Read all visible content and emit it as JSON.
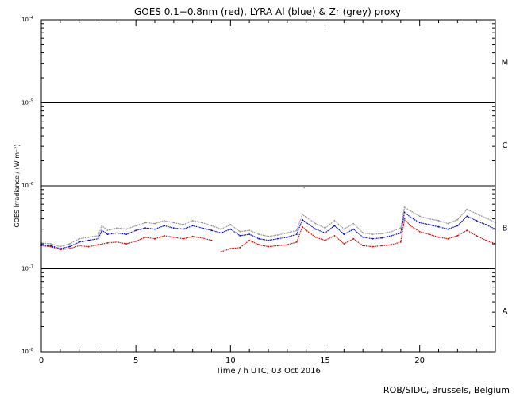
{
  "chart_data": {
    "type": "line",
    "title": "GOES 0.1−0.8nm (red), LYRA Al (blue) & Zr (grey) proxy",
    "xlabel": "Time / h UTC, 03 Oct 2016",
    "ylabel": "GOES Irradiance / (W m⁻²)",
    "xlim": [
      0,
      24
    ],
    "ylim_log10": [
      -8,
      -4
    ],
    "y_scale": "log",
    "x_ticks": [
      0,
      5,
      10,
      15,
      20
    ],
    "x_tick_labels": [
      "0",
      "5",
      "10",
      "15",
      "20"
    ],
    "y_ticks_log10": [
      -8,
      -7,
      -6,
      -5,
      -4
    ],
    "y_tick_labels": [
      {
        "base": "10",
        "exp": "-8"
      },
      {
        "base": "10",
        "exp": "-7"
      },
      {
        "base": "10",
        "exp": "-6"
      },
      {
        "base": "10",
        "exp": "-5"
      },
      {
        "base": "10",
        "exp": "-4"
      }
    ],
    "flare_class_lines_log10": [
      -7,
      -6,
      -5
    ],
    "flare_classes": [
      {
        "label": "A",
        "log10": -7.5
      },
      {
        "label": "B",
        "log10": -6.5
      },
      {
        "label": "C",
        "log10": -5.5
      },
      {
        "label": "M",
        "log10": -4.5
      }
    ],
    "series": [
      {
        "name": "GOES 0.1−0.8nm",
        "color": "#e00000",
        "x": [
          0,
          0.5,
          1,
          1.5,
          2,
          2.5,
          3,
          3.5,
          4,
          4.5,
          5,
          5.5,
          6,
          6.5,
          7,
          7.5,
          8,
          8.5,
          9
        ],
        "y": [
          1.9e-07,
          1.85e-07,
          1.7e-07,
          1.75e-07,
          1.9e-07,
          1.85e-07,
          1.95e-07,
          2.05e-07,
          2.1e-07,
          2e-07,
          2.15e-07,
          2.4e-07,
          2.3e-07,
          2.5e-07,
          2.4e-07,
          2.3e-07,
          2.45e-07,
          2.35e-07,
          2.2e-07
        ]
      },
      {
        "name": "GOES 0.1−0.8nm (cont.)",
        "color": "#e00000",
        "x": [
          9.5,
          10,
          10.5,
          11,
          11.5,
          12,
          12.5,
          13,
          13.5,
          13.8,
          14,
          14.5,
          15,
          15.5,
          16,
          16.5,
          17,
          17.5,
          18,
          18.5,
          19,
          19.2,
          19.5,
          20,
          20.5,
          21,
          21.5,
          22,
          22.5,
          23,
          23.5,
          24
        ],
        "y": [
          1.6e-07,
          1.75e-07,
          1.8e-07,
          2.2e-07,
          1.95e-07,
          1.85e-07,
          1.9e-07,
          1.95e-07,
          2.1e-07,
          3.2e-07,
          2.9e-07,
          2.4e-07,
          2.2e-07,
          2.5e-07,
          2e-07,
          2.3e-07,
          1.9e-07,
          1.85e-07,
          1.9e-07,
          1.95e-07,
          2.1e-07,
          4e-07,
          3.3e-07,
          2.8e-07,
          2.6e-07,
          2.4e-07,
          2.3e-07,
          2.5e-07,
          2.9e-07,
          2.5e-07,
          2.2e-07,
          2e-07
        ]
      },
      {
        "name": "LYRA Al proxy",
        "color": "#0000d0",
        "x": [
          0,
          0.5,
          1,
          1.5,
          2,
          2.5,
          3,
          3.2,
          3.5,
          4,
          4.5,
          5,
          5.5,
          6,
          6.5,
          7,
          7.5,
          8,
          8.5,
          9,
          9.5,
          10,
          10.5,
          11,
          11.5,
          12,
          12.5,
          13,
          13.5,
          13.8,
          14,
          14.5,
          15,
          15.5,
          16,
          16.5,
          17,
          17.5,
          18,
          18.5,
          19,
          19.2,
          19.5,
          20,
          20.5,
          21,
          21.5,
          22,
          22.5,
          23,
          23.5,
          24
        ],
        "y": [
          1.95e-07,
          1.9e-07,
          1.75e-07,
          1.85e-07,
          2.1e-07,
          2.2e-07,
          2.3e-07,
          2.9e-07,
          2.6e-07,
          2.7e-07,
          2.6e-07,
          2.9e-07,
          3.1e-07,
          3e-07,
          3.3e-07,
          3.1e-07,
          3e-07,
          3.3e-07,
          3.1e-07,
          2.9e-07,
          2.7e-07,
          3e-07,
          2.5e-07,
          2.6e-07,
          2.3e-07,
          2.2e-07,
          2.3e-07,
          2.4e-07,
          2.6e-07,
          3.9e-07,
          3.6e-07,
          3e-07,
          2.7e-07,
          3.3e-07,
          2.6e-07,
          3e-07,
          2.4e-07,
          2.3e-07,
          2.35e-07,
          2.5e-07,
          2.7e-07,
          4.8e-07,
          4.2e-07,
          3.6e-07,
          3.4e-07,
          3.2e-07,
          3e-07,
          3.3e-07,
          4.3e-07,
          3.8e-07,
          3.4e-07,
          3e-07
        ]
      },
      {
        "name": "LYRA Zr proxy",
        "color": "#909090",
        "x": [
          0,
          0.5,
          1,
          1.5,
          2,
          2.5,
          3,
          3.2,
          3.5,
          4,
          4.5,
          5,
          5.5,
          6,
          6.5,
          7,
          7.5,
          8,
          8.5,
          9,
          9.5,
          10,
          10.5,
          11,
          11.5,
          12,
          12.5,
          13,
          13.5,
          13.8,
          14,
          14.5,
          15,
          15.5,
          16,
          16.5,
          17,
          17.5,
          18,
          18.5,
          19,
          19.2,
          19.5,
          20,
          20.5,
          21,
          21.5,
          22,
          22.5,
          23,
          23.5,
          24
        ],
        "y": [
          2.05e-07,
          2e-07,
          1.85e-07,
          2e-07,
          2.3e-07,
          2.4e-07,
          2.5e-07,
          3.3e-07,
          2.9e-07,
          3.1e-07,
          3e-07,
          3.3e-07,
          3.6e-07,
          3.5e-07,
          3.8e-07,
          3.6e-07,
          3.4e-07,
          3.8e-07,
          3.6e-07,
          3.3e-07,
          3e-07,
          3.4e-07,
          2.8e-07,
          2.9e-07,
          2.6e-07,
          2.45e-07,
          2.55e-07,
          2.7e-07,
          2.9e-07,
          4.5e-07,
          4.2e-07,
          3.5e-07,
          3.1e-07,
          3.8e-07,
          3e-07,
          3.5e-07,
          2.7e-07,
          2.6e-07,
          2.65e-07,
          2.8e-07,
          3.1e-07,
          5.5e-07,
          5e-07,
          4.3e-07,
          4e-07,
          3.8e-07,
          3.5e-07,
          3.9e-07,
          5.2e-07,
          4.6e-07,
          4.1e-07,
          3.6e-07
        ]
      }
    ],
    "isolated_points": [
      {
        "x": 13.9,
        "y": 9.5e-07,
        "color": "#909090"
      }
    ]
  },
  "credit": "ROB/SIDC, Brussels, Belgium"
}
